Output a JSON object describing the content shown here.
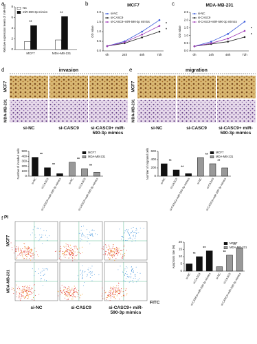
{
  "figure": {
    "letters": [
      "a",
      "b",
      "c",
      "d",
      "e",
      "f"
    ],
    "invasion": {
      "title": "invasion",
      "rows": [
        "MCF7",
        "MDA-MB-231"
      ],
      "columns": [
        "si-NC",
        "si-CASC9",
        "si-CASC9+ miR-590-3p mimics"
      ]
    },
    "migration": {
      "title": "migration",
      "rows": [
        "MCF7",
        "MDA-MB-231"
      ],
      "columns": [
        "si-NC",
        "si-CASC9",
        "si-CASC9+ miR-590-3p mimics"
      ]
    },
    "flow": {
      "y_label": "PI",
      "x_label": "FITC",
      "rows": [
        "MCF7",
        "MDA-MB-231"
      ],
      "columns": [
        "si-NC",
        "si-CASC9",
        "si-CASC9+ miR-590-3p mimics"
      ]
    }
  },
  "chart_data": [
    {
      "type": "bar",
      "y_label": "Relative expression levels of miR-590",
      "categories": [
        "MCF7",
        "MDA-MB-231"
      ],
      "series": [
        {
          "name": "NC",
          "color": "#ffffff",
          "values": [
            1.5,
            1.8
          ]
        },
        {
          "name": "miR-590-3p mimics",
          "color": "#111111",
          "values": [
            4.5,
            6.2
          ]
        }
      ],
      "ylim": [
        0,
        8
      ],
      "yticks": [
        0,
        2,
        4,
        6,
        8
      ],
      "annotations": [
        "**",
        "**"
      ],
      "legend": "upper-left"
    },
    {
      "type": "line",
      "title": "MCF7",
      "y_label": "OD value",
      "categories": [
        "0h",
        "24h",
        "48h",
        "72h"
      ],
      "series": [
        {
          "name": "si-NC",
          "color": "#3b5bdb",
          "values": [
            0.25,
            0.5,
            1.0,
            1.6
          ]
        },
        {
          "name": "si-CASC9",
          "color": "#222222",
          "values": [
            0.25,
            0.4,
            0.7,
            1.0
          ]
        },
        {
          "name": "si-CASC9+miR-590-3p mimics",
          "color": "#9c36b5",
          "values": [
            0.25,
            0.45,
            0.85,
            1.3
          ]
        }
      ],
      "ylim": [
        0,
        2
      ],
      "yticks": [
        {
          "value": 0,
          "label": "0.0"
        },
        {
          "value": 0.5,
          "label": "0.5"
        },
        {
          "value": 1,
          "label": "1.0"
        },
        {
          "value": 1.5,
          "label": "1.5"
        },
        {
          "value": 2,
          "label": "2.0"
        }
      ],
      "annotations": [
        "*",
        "*"
      ],
      "legend": "upper-left"
    },
    {
      "type": "line",
      "title": "MDA-MB-231",
      "y_label": "OD value",
      "categories": [
        "0h",
        "24h",
        "48h",
        "72h"
      ],
      "series": [
        {
          "name": "si-NC",
          "color": "#3b5bdb",
          "values": [
            0.3,
            0.6,
            1.1,
            1.9
          ]
        },
        {
          "name": "si-CASC9",
          "color": "#222222",
          "values": [
            0.3,
            0.45,
            0.6,
            0.9
          ]
        },
        {
          "name": "si-CASC9+miR-590-3p mimics",
          "color": "#9c36b5",
          "values": [
            0.3,
            0.5,
            0.8,
            1.3
          ]
        }
      ],
      "ylim": [
        0,
        2.5
      ],
      "yticks": [
        {
          "value": 0,
          "label": "0.0"
        },
        {
          "value": 0.5,
          "label": "0.5"
        },
        {
          "value": 1,
          "label": "1.0"
        },
        {
          "value": 1.5,
          "label": "1.5"
        },
        {
          "value": 2,
          "label": "2.0"
        },
        {
          "value": 2.5,
          "label": "2.5"
        }
      ],
      "annotations": [
        "*",
        "*"
      ],
      "legend": "upper-left"
    },
    {
      "type": "bar",
      "y_label": "Number of invaded cells",
      "categories": [
        "si-NC",
        "si-CASC9",
        "si-CASC9+miR-590-3p mimics",
        "si-NC",
        "si-CASC9",
        "si-CASC9+miR-590-3p mimics"
      ],
      "series": [
        {
          "name": "MCF7",
          "color": "#111111",
          "values": [
            380,
            170,
            50,
            null,
            null,
            null
          ]
        },
        {
          "name": "MDA-MB-231",
          "color": "#999999",
          "values": [
            null,
            null,
            null,
            280,
            150,
            80
          ]
        }
      ],
      "ylim": [
        0,
        500
      ],
      "yticks": [
        0,
        100,
        200,
        300,
        400,
        500
      ],
      "annotations": [
        "**",
        "**",
        "**",
        "**"
      ],
      "legend": "upper-right"
    },
    {
      "type": "bar",
      "y_label": "Number of migrated cells",
      "categories": [
        "si-NC",
        "si-CASC9",
        "si-CASC9+miR-590-3p mimics",
        "si-NC",
        "si-CASC9",
        "si-CASC9+miR-590-3p mimics"
      ],
      "series": [
        {
          "name": "MCF7",
          "color": "#111111",
          "values": [
            300,
            150,
            60,
            null,
            null,
            null
          ]
        },
        {
          "name": "MDA-MB-231",
          "color": "#999999",
          "values": [
            null,
            null,
            null,
            450,
            300,
            200
          ]
        }
      ],
      "ylim": [
        0,
        600
      ],
      "yticks": [
        0,
        200,
        400,
        600
      ],
      "annotations": [
        "**",
        "**",
        "**",
        "**"
      ],
      "legend": "upper-right"
    },
    {
      "type": "bar",
      "y_label": "Apoptosis rate (%)",
      "categories": [
        "si-NC",
        "si-CASC9",
        "si-CASC9+miR-590-3p mimics",
        "si-NC",
        "si-CASC9",
        "si-CASC9+miR-590-3p mimics"
      ],
      "series": [
        {
          "name": "MCF7",
          "color": "#111111",
          "values": [
            5,
            10,
            14,
            null,
            null,
            null
          ]
        },
        {
          "name": "MDA-MB-231",
          "color": "#999999",
          "values": [
            null,
            null,
            null,
            3,
            11,
            16
          ]
        }
      ],
      "ylim": [
        0,
        20
      ],
      "yticks": [
        0,
        5,
        10,
        15,
        20
      ],
      "annotations": [
        "**",
        "**",
        "**",
        "**"
      ],
      "legend": "upper-right"
    }
  ]
}
